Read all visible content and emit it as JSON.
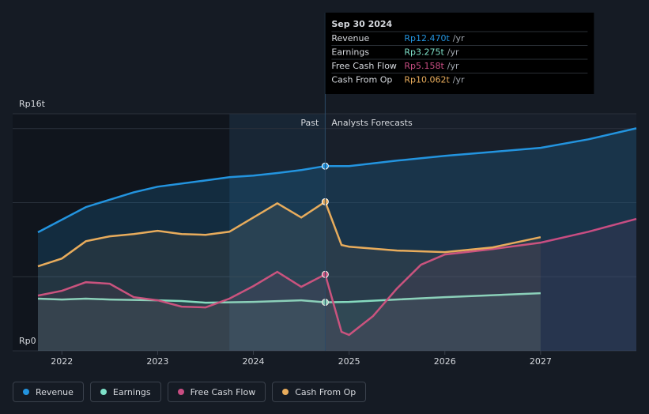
{
  "chart_data": {
    "type": "line",
    "past_label": "Past",
    "forecast_label": "Analysts Forecasts",
    "xlim": [
      2021.75,
      2028.0
    ],
    "xticks": [
      2022,
      2023,
      2024,
      2025,
      2026,
      2027
    ],
    "ylim": [
      0,
      16
    ],
    "yticks": [
      {
        "value": 0,
        "label": "Rp0"
      },
      {
        "value": 5,
        "label": null
      },
      {
        "value": 10,
        "label": null
      },
      {
        "value": 15,
        "label": null
      },
      {
        "value": 16,
        "label": "Rp16t"
      }
    ],
    "divider_x": 2024.75,
    "series": [
      {
        "name": "Revenue",
        "color": "#2394df",
        "x": [
          2021.75,
          2022.25,
          2022.75,
          2023.0,
          2023.5,
          2023.75,
          2024.0,
          2024.25,
          2024.5,
          2024.75,
          2025.0,
          2025.5,
          2026.0,
          2026.5,
          2027.0,
          2027.5,
          2028.0
        ],
        "values": [
          8.0,
          9.7,
          10.7,
          11.08,
          11.5,
          11.72,
          11.83,
          12.0,
          12.2,
          12.47,
          12.47,
          12.84,
          13.16,
          13.43,
          13.7,
          14.28,
          15.02
        ]
      },
      {
        "name": "Earnings",
        "color": "#7ee0c8",
        "x": [
          2021.75,
          2022.0,
          2022.25,
          2022.5,
          2023.0,
          2023.25,
          2023.5,
          2024.0,
          2024.5,
          2024.75,
          2025.0,
          2026.0,
          2027.0
        ],
        "values": [
          3.52,
          3.46,
          3.52,
          3.46,
          3.41,
          3.36,
          3.25,
          3.3,
          3.41,
          3.275,
          3.3,
          3.62,
          3.89
        ]
      },
      {
        "name": "Free Cash Flow",
        "color": "#c84d82",
        "x": [
          2021.75,
          2022.0,
          2022.25,
          2022.5,
          2022.75,
          2023.0,
          2023.25,
          2023.5,
          2023.75,
          2024.0,
          2024.25,
          2024.5,
          2024.75,
          2024.92,
          2025.0,
          2025.25,
          2025.5,
          2025.75,
          2026.0,
          2026.5,
          2027.0,
          2027.5,
          2028.0
        ],
        "values": [
          3.73,
          4.05,
          4.63,
          4.53,
          3.62,
          3.41,
          2.98,
          2.93,
          3.52,
          4.37,
          5.33,
          4.32,
          5.158,
          1.28,
          1.07,
          2.34,
          4.21,
          5.81,
          6.5,
          6.87,
          7.3,
          8.04,
          8.9
        ]
      },
      {
        "name": "Cash From Op",
        "color": "#e8ac5c",
        "x": [
          2021.75,
          2022.0,
          2022.25,
          2022.5,
          2022.75,
          2023.0,
          2023.25,
          2023.5,
          2023.75,
          2024.0,
          2024.25,
          2024.5,
          2024.75,
          2024.92,
          2025.0,
          2025.5,
          2026.0,
          2026.5,
          2027.0
        ],
        "values": [
          5.7,
          6.23,
          7.4,
          7.73,
          7.88,
          8.1,
          7.88,
          7.83,
          8.04,
          9.0,
          9.96,
          9.0,
          10.062,
          7.14,
          7.03,
          6.77,
          6.66,
          6.98,
          7.67
        ]
      }
    ]
  },
  "tooltip": {
    "date": "Sep 30 2024",
    "rows": [
      {
        "label": "Revenue",
        "value": "Rp12.470t",
        "unit": "/yr",
        "color": "#2394df"
      },
      {
        "label": "Earnings",
        "value": "Rp3.275t",
        "unit": "/yr",
        "color": "#7ee0c8"
      },
      {
        "label": "Free Cash Flow",
        "value": "Rp5.158t",
        "unit": "/yr",
        "color": "#c84d82"
      },
      {
        "label": "Cash From Op",
        "value": "Rp10.062t",
        "unit": "/yr",
        "color": "#e8ac5c"
      }
    ]
  }
}
